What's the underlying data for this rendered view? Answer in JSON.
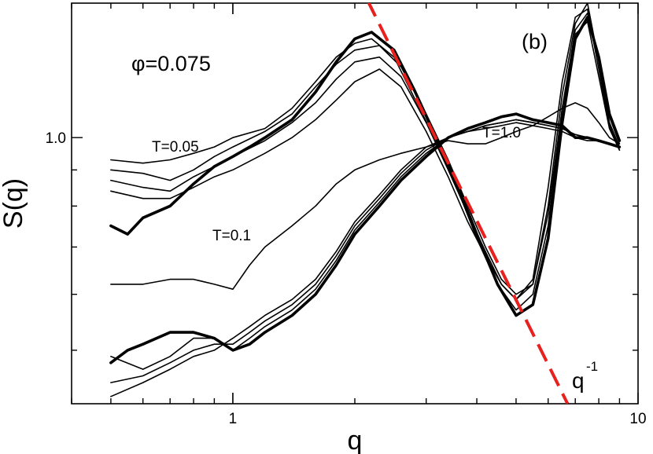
{
  "chart_data": {
    "type": "line",
    "xscale": "log",
    "yscale": "log",
    "xlim": [
      0.4,
      10
    ],
    "ylim": [
      0.42,
      1.55
    ],
    "xlabel": "q",
    "ylabel": "S(q)",
    "xticks": [
      {
        "value": 1,
        "label": "1"
      },
      {
        "value": 10,
        "label": "10"
      }
    ],
    "yticks": [
      {
        "value": 1.0,
        "label": "1.0"
      }
    ],
    "panel_label": "(b)",
    "phi_label": "φ=0.075",
    "annotations": {
      "t005": "T=0.05",
      "t01": "T=0.1",
      "t10": "T=1.0",
      "power_law": "q",
      "power_exp": "-1"
    },
    "reference_line": {
      "name": "q^-1",
      "style": "dashed",
      "color": "#e8201e",
      "x": [
        2.0,
        6.7
      ],
      "y": [
        1.7,
        0.42
      ]
    },
    "series": [
      {
        "name": "T=0.05 bold",
        "bold": true,
        "color": "#000000",
        "x": [
          0.5,
          0.55,
          0.6,
          0.7,
          0.8,
          0.9,
          1.0,
          1.1,
          1.2,
          1.4,
          1.6,
          1.8,
          2.0,
          2.2,
          2.5,
          2.8,
          3.2,
          3.6,
          4.0,
          4.5,
          5.0,
          5.5,
          6.0,
          6.5,
          7.0,
          7.5,
          8.0,
          8.5,
          9.0
        ],
        "y": [
          0.75,
          0.73,
          0.77,
          0.8,
          0.86,
          0.91,
          0.94,
          0.97,
          1.0,
          1.06,
          1.16,
          1.28,
          1.38,
          1.41,
          1.33,
          1.17,
          0.99,
          0.85,
          0.73,
          0.62,
          0.56,
          0.58,
          0.72,
          1.05,
          1.38,
          1.48,
          1.3,
          1.08,
          0.99
        ]
      },
      {
        "name": "T=0.05 a",
        "bold": false,
        "color": "#000000",
        "x": [
          0.5,
          0.6,
          0.7,
          0.8,
          0.9,
          1.0,
          1.2,
          1.4,
          1.6,
          1.8,
          2.0,
          2.2,
          2.5,
          2.8,
          3.2,
          3.6,
          4.0,
          4.5,
          5.0,
          5.5,
          6.0,
          6.5,
          7.0,
          7.5,
          8.0,
          8.5,
          9.0
        ],
        "y": [
          0.93,
          0.92,
          0.93,
          0.95,
          0.97,
          1.0,
          1.03,
          1.1,
          1.2,
          1.3,
          1.36,
          1.38,
          1.3,
          1.14,
          0.98,
          0.84,
          0.72,
          0.62,
          0.57,
          0.6,
          0.75,
          1.1,
          1.42,
          1.5,
          1.3,
          1.07,
          0.98
        ]
      },
      {
        "name": "T=0.05 b",
        "bold": false,
        "color": "#000000",
        "x": [
          0.5,
          0.6,
          0.7,
          0.8,
          0.9,
          1.0,
          1.2,
          1.4,
          1.6,
          1.8,
          2.0,
          2.3,
          2.6,
          3.0,
          3.4,
          3.8,
          4.2,
          4.6,
          5.0,
          5.5,
          6.0,
          6.5,
          7.0,
          7.5,
          8.0,
          8.5,
          9.0
        ],
        "y": [
          0.9,
          0.89,
          0.87,
          0.9,
          0.94,
          0.97,
          1.02,
          1.08,
          1.18,
          1.27,
          1.33,
          1.35,
          1.26,
          1.08,
          0.93,
          0.8,
          0.7,
          0.63,
          0.6,
          0.62,
          0.8,
          1.15,
          1.45,
          1.55,
          1.28,
          1.05,
          0.97
        ]
      },
      {
        "name": "T=0.05 c",
        "bold": false,
        "color": "#000000",
        "x": [
          0.5,
          0.6,
          0.7,
          0.8,
          0.9,
          1.0,
          1.2,
          1.4,
          1.6,
          1.8,
          2.0,
          2.3,
          2.6,
          3.0,
          3.4,
          3.8,
          4.2,
          4.6,
          5.0,
          5.5,
          6.0,
          6.5,
          7.0,
          7.5,
          8.0,
          8.5,
          9.0
        ],
        "y": [
          0.87,
          0.85,
          0.84,
          0.88,
          0.91,
          0.94,
          0.99,
          1.05,
          1.12,
          1.21,
          1.28,
          1.3,
          1.22,
          1.05,
          0.9,
          0.78,
          0.69,
          0.62,
          0.59,
          0.63,
          0.85,
          1.2,
          1.48,
          1.52,
          1.25,
          1.04,
          0.96
        ]
      },
      {
        "name": "T=0.05 d",
        "bold": false,
        "color": "#000000",
        "x": [
          0.5,
          0.6,
          0.7,
          0.8,
          0.9,
          1.0,
          1.2,
          1.4,
          1.6,
          1.8,
          2.0,
          2.3,
          2.6,
          3.0,
          3.4,
          3.8,
          4.2,
          4.6,
          5.0,
          5.5,
          6.0,
          6.5,
          7.0,
          7.5,
          8.0,
          8.5,
          9.0
        ],
        "y": [
          0.84,
          0.82,
          0.82,
          0.85,
          0.88,
          0.9,
          0.95,
          1.0,
          1.06,
          1.13,
          1.2,
          1.25,
          1.18,
          1.02,
          0.88,
          0.76,
          0.68,
          0.62,
          0.59,
          0.62,
          0.78,
          1.1,
          1.4,
          1.46,
          1.22,
          1.03,
          0.96
        ]
      },
      {
        "name": "T=0.1 bold",
        "bold": true,
        "color": "#000000",
        "x": [
          0.5,
          0.55,
          0.6,
          0.7,
          0.8,
          0.9,
          1.0,
          1.1,
          1.2,
          1.4,
          1.6,
          1.8,
          2.0,
          2.3,
          2.6,
          3.0,
          3.4,
          3.8,
          4.2,
          4.6,
          5.0,
          5.5,
          6.0,
          6.5,
          7.0,
          7.5,
          8.0,
          8.5,
          9.0
        ],
        "y": [
          0.48,
          0.5,
          0.51,
          0.53,
          0.53,
          0.52,
          0.5,
          0.51,
          0.53,
          0.56,
          0.6,
          0.66,
          0.73,
          0.8,
          0.87,
          0.94,
          1.0,
          1.03,
          1.05,
          1.07,
          1.08,
          1.06,
          1.05,
          1.04,
          1.0,
          1.0,
          0.99,
          0.98,
          0.97
        ]
      },
      {
        "name": "T=0.1 a",
        "bold": false,
        "color": "#000000",
        "x": [
          0.5,
          0.6,
          0.7,
          0.8,
          0.9,
          1.0,
          1.1,
          1.2,
          1.4,
          1.6,
          1.8,
          2.0,
          2.3,
          2.6,
          3.0,
          3.4,
          3.8,
          4.2,
          4.6,
          5.0,
          5.5,
          6.0,
          6.5,
          7.0,
          7.5,
          8.0,
          8.5,
          9.0
        ],
        "y": [
          0.49,
          0.47,
          0.49,
          0.52,
          0.52,
          0.5,
          0.52,
          0.54,
          0.57,
          0.61,
          0.67,
          0.74,
          0.81,
          0.88,
          0.95,
          1.0,
          1.02,
          1.03,
          1.04,
          1.05,
          1.04,
          1.03,
          1.02,
          1.0,
          0.99,
          0.99,
          0.98,
          0.97
        ]
      },
      {
        "name": "T=0.1 b",
        "bold": false,
        "color": "#000000",
        "x": [
          0.5,
          0.6,
          0.7,
          0.8,
          0.9,
          1.0,
          1.1,
          1.2,
          1.4,
          1.6,
          1.8,
          2.0,
          2.3,
          2.6,
          3.0,
          3.4,
          3.8,
          4.2,
          4.6,
          5.0,
          5.5,
          6.0,
          6.5,
          7.0,
          7.5,
          8.0,
          8.5,
          9.0
        ],
        "y": [
          0.45,
          0.46,
          0.48,
          0.5,
          0.51,
          0.51,
          0.53,
          0.55,
          0.58,
          0.62,
          0.68,
          0.75,
          0.82,
          0.89,
          0.96,
          1.0,
          1.02,
          1.04,
          1.05,
          1.06,
          1.05,
          1.04,
          1.03,
          1.01,
          1.0,
          0.99,
          0.98,
          0.97
        ]
      },
      {
        "name": "T=0.1 c",
        "bold": false,
        "color": "#000000",
        "x": [
          0.5,
          0.6,
          0.7,
          0.8,
          0.9,
          1.0,
          1.1,
          1.2,
          1.4,
          1.6,
          1.8,
          2.0,
          2.3,
          2.6,
          3.0,
          3.4,
          3.8,
          4.2,
          4.6,
          5.0,
          5.5,
          6.0,
          6.5,
          7.0,
          7.5,
          8.0,
          8.5,
          9.0
        ],
        "y": [
          0.43,
          0.45,
          0.47,
          0.49,
          0.5,
          0.52,
          0.54,
          0.56,
          0.59,
          0.63,
          0.69,
          0.76,
          0.83,
          0.9,
          0.97,
          1.0,
          1.02,
          1.04,
          1.05,
          1.06,
          1.05,
          1.04,
          1.03,
          1.01,
          1.0,
          0.99,
          0.98,
          0.97
        ]
      },
      {
        "name": "T=1.0",
        "bold": false,
        "color": "#000000",
        "x": [
          0.5,
          0.6,
          0.7,
          0.8,
          0.9,
          1.0,
          1.1,
          1.2,
          1.4,
          1.6,
          1.8,
          2.0,
          2.3,
          2.6,
          3.0,
          3.4,
          3.8,
          4.2,
          4.6,
          5.0,
          5.5,
          6.0,
          6.5,
          7.0,
          7.5,
          8.0,
          8.5,
          9.0
        ],
        "y": [
          0.62,
          0.62,
          0.63,
          0.63,
          0.62,
          0.61,
          0.66,
          0.7,
          0.75,
          0.8,
          0.86,
          0.9,
          0.93,
          0.95,
          0.97,
          0.99,
          0.98,
          0.98,
          1.0,
          1.02,
          1.04,
          1.07,
          1.1,
          1.12,
          1.1,
          1.05,
          1.0,
          0.98
        ]
      }
    ]
  }
}
